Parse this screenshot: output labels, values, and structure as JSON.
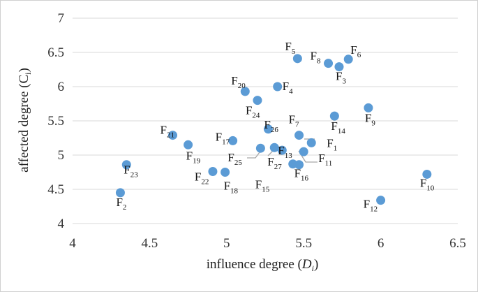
{
  "chart_data": {
    "type": "scatter",
    "title": "",
    "xlabel": "influence degree (Di)",
    "ylabel": "affected degree (Ci)",
    "xlim": [
      4,
      6.5
    ],
    "ylim": [
      4,
      7
    ],
    "x_ticks": [
      "4",
      "4.5",
      "5",
      "5.5",
      "6",
      "6.5"
    ],
    "y_ticks": [
      "4",
      "4.5",
      "5",
      "5.5",
      "6",
      "6.5",
      "7"
    ],
    "grid": "horizontal",
    "legend": "none",
    "marker_color": "#5b9bd5",
    "points": [
      {
        "label": "F1",
        "x": 5.55,
        "y": 5.18
      },
      {
        "label": "F2",
        "x": 4.31,
        "y": 4.45
      },
      {
        "label": "F3",
        "x": 5.73,
        "y": 6.29
      },
      {
        "label": "F4",
        "x": 5.33,
        "y": 6.0
      },
      {
        "label": "F5",
        "x": 5.46,
        "y": 6.41
      },
      {
        "label": "F6",
        "x": 5.79,
        "y": 6.4
      },
      {
        "label": "F7",
        "x": 5.47,
        "y": 5.29
      },
      {
        "label": "F8",
        "x": 5.66,
        "y": 6.34
      },
      {
        "label": "F9",
        "x": 5.92,
        "y": 5.69
      },
      {
        "label": "F10",
        "x": 6.3,
        "y": 4.72
      },
      {
        "label": "F11",
        "x": 5.5,
        "y": 5.05
      },
      {
        "label": "F12",
        "x": 6.0,
        "y": 4.34
      },
      {
        "label": "F13",
        "x": 5.31,
        "y": 5.11
      },
      {
        "label": "F14",
        "x": 5.7,
        "y": 5.57
      },
      {
        "label": "F15",
        "x": 5.43,
        "y": 4.87
      },
      {
        "label": "F16",
        "x": 5.47,
        "y": 4.86
      },
      {
        "label": "F17",
        "x": 5.04,
        "y": 5.21
      },
      {
        "label": "F18",
        "x": 4.99,
        "y": 4.75
      },
      {
        "label": "F19",
        "x": 4.75,
        "y": 5.15
      },
      {
        "label": "F20",
        "x": 5.12,
        "y": 5.93
      },
      {
        "label": "F21",
        "x": 4.65,
        "y": 5.29
      },
      {
        "label": "F22",
        "x": 4.91,
        "y": 4.76
      },
      {
        "label": "F23",
        "x": 4.35,
        "y": 4.86
      },
      {
        "label": "F24",
        "x": 5.2,
        "y": 5.8
      },
      {
        "label": "F25",
        "x": 5.22,
        "y": 5.1
      },
      {
        "label": "F26",
        "x": 5.27,
        "y": 5.38
      },
      {
        "label": "F27",
        "x": 5.36,
        "y": 5.07
      }
    ]
  }
}
